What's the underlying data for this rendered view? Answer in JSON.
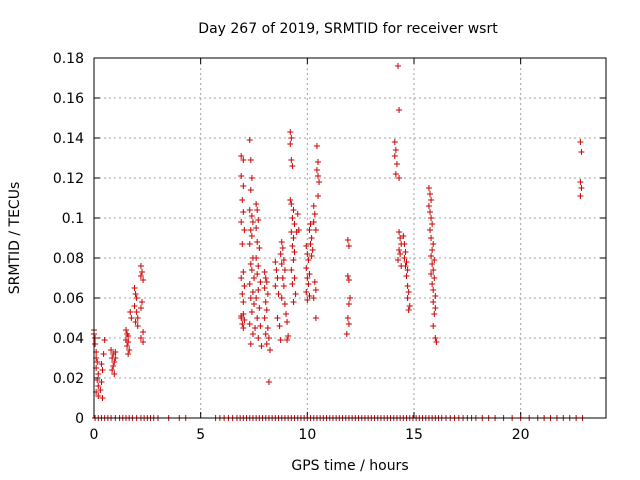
{
  "chart_data": {
    "type": "scatter",
    "title": "Day 267 of 2019, SRMTID for receiver wsrt",
    "xlabel": "GPS time / hours",
    "ylabel": "SRMTID / TECUs",
    "xlim": [
      0,
      24
    ],
    "ylim": [
      0,
      0.18
    ],
    "xticks": [
      "0",
      "5",
      "10",
      "15",
      "20"
    ],
    "yticks": [
      "0",
      "0.02",
      "0.04",
      "0.06",
      "0.08",
      "0.1",
      "0.12",
      "0.14",
      "0.16",
      "0.18"
    ],
    "grid": true,
    "marker": "+",
    "color": "#cc0000",
    "zero_x": [
      0.05,
      0.2,
      0.35,
      0.5,
      0.65,
      0.8,
      1.0,
      1.2,
      1.35,
      1.5,
      1.65,
      1.8,
      2.0,
      2.2,
      2.35,
      2.5,
      2.65,
      2.8,
      3.0,
      3.5,
      4.0,
      4.3,
      5.7,
      5.9,
      6.1,
      6.3,
      6.5,
      6.7,
      6.85,
      7.0,
      7.15,
      7.3,
      7.45,
      7.6,
      7.75,
      7.9,
      8.05,
      8.2,
      8.35,
      8.5,
      8.65,
      8.8,
      8.95,
      9.1,
      9.25,
      9.4,
      9.55,
      9.7,
      9.85,
      10.0,
      10.15,
      10.3,
      10.45,
      10.6,
      10.75,
      10.9,
      11.05,
      11.2,
      11.35,
      11.5,
      11.65,
      11.8,
      11.95,
      12.1,
      12.25,
      12.4,
      12.55,
      12.7,
      12.85,
      13.0,
      13.15,
      13.3,
      13.45,
      13.6,
      13.75,
      13.9,
      14.05,
      14.2,
      14.35,
      14.5,
      14.65,
      14.8,
      14.95,
      15.1,
      15.25,
      15.4,
      15.55,
      15.7,
      15.85,
      16.0,
      16.15,
      16.3,
      16.5,
      16.7,
      16.9,
      17.1,
      17.3,
      17.5,
      17.7,
      17.9,
      18.2,
      18.5,
      18.8,
      19.2,
      19.6,
      20.0,
      20.4,
      20.8,
      21.1,
      21.4,
      21.7,
      22.0,
      22.3,
      22.6,
      22.9
    ],
    "points": [
      [
        0.0,
        0.044
      ],
      [
        0.0,
        0.042
      ],
      [
        0.05,
        0.04
      ],
      [
        0.05,
        0.037
      ],
      [
        0.1,
        0.033
      ],
      [
        0.1,
        0.03
      ],
      [
        0.15,
        0.028
      ],
      [
        0.1,
        0.025
      ],
      [
        0.2,
        0.022
      ],
      [
        0.15,
        0.019
      ],
      [
        0.2,
        0.016
      ],
      [
        0.1,
        0.013
      ],
      [
        0.2,
        0.011
      ],
      [
        0.3,
        0.014
      ],
      [
        0.35,
        0.018
      ],
      [
        0.4,
        0.024
      ],
      [
        0.35,
        0.027
      ],
      [
        0.45,
        0.032
      ],
      [
        0.5,
        0.039
      ],
      [
        0.4,
        0.01
      ],
      [
        0.8,
        0.034
      ],
      [
        0.9,
        0.032
      ],
      [
        0.85,
        0.03
      ],
      [
        0.95,
        0.028
      ],
      [
        0.9,
        0.026
      ],
      [
        1.0,
        0.033
      ],
      [
        1.0,
        0.03
      ],
      [
        0.85,
        0.024
      ],
      [
        0.95,
        0.022
      ],
      [
        1.5,
        0.044
      ],
      [
        1.55,
        0.042
      ],
      [
        1.6,
        0.041
      ],
      [
        1.5,
        0.039
      ],
      [
        1.6,
        0.038
      ],
      [
        1.55,
        0.036
      ],
      [
        1.65,
        0.034
      ],
      [
        1.6,
        0.032
      ],
      [
        1.7,
        0.053
      ],
      [
        1.75,
        0.05
      ],
      [
        1.9,
        0.065
      ],
      [
        1.95,
        0.062
      ],
      [
        2.0,
        0.06
      ],
      [
        1.9,
        0.056
      ],
      [
        2.0,
        0.053
      ],
      [
        2.05,
        0.05
      ],
      [
        1.95,
        0.048
      ],
      [
        2.05,
        0.046
      ],
      [
        2.2,
        0.076
      ],
      [
        2.25,
        0.073
      ],
      [
        2.2,
        0.071
      ],
      [
        2.3,
        0.069
      ],
      [
        2.25,
        0.058
      ],
      [
        2.2,
        0.055
      ],
      [
        2.3,
        0.043
      ],
      [
        2.2,
        0.04
      ],
      [
        2.3,
        0.038
      ],
      [
        6.9,
        0.131
      ],
      [
        7.0,
        0.129
      ],
      [
        6.9,
        0.121
      ],
      [
        7.0,
        0.116
      ],
      [
        6.95,
        0.109
      ],
      [
        7.0,
        0.103
      ],
      [
        6.9,
        0.098
      ],
      [
        7.05,
        0.094
      ],
      [
        6.95,
        0.087
      ],
      [
        7.0,
        0.073
      ],
      [
        6.9,
        0.07
      ],
      [
        7.05,
        0.066
      ],
      [
        6.95,
        0.062
      ],
      [
        7.0,
        0.058
      ],
      [
        6.9,
        0.051
      ],
      [
        7.05,
        0.049
      ],
      [
        6.95,
        0.047
      ],
      [
        7.0,
        0.045
      ],
      [
        6.9,
        0.05
      ],
      [
        7.0,
        0.052
      ],
      [
        7.3,
        0.139
      ],
      [
        7.35,
        0.129
      ],
      [
        7.4,
        0.12
      ],
      [
        7.35,
        0.114
      ],
      [
        7.3,
        0.104
      ],
      [
        7.4,
        0.101
      ],
      [
        7.45,
        0.098
      ],
      [
        7.35,
        0.094
      ],
      [
        7.4,
        0.091
      ],
      [
        7.3,
        0.087
      ],
      [
        7.45,
        0.08
      ],
      [
        7.35,
        0.077
      ],
      [
        7.4,
        0.074
      ],
      [
        7.5,
        0.07
      ],
      [
        7.3,
        0.067
      ],
      [
        7.45,
        0.063
      ],
      [
        7.35,
        0.06
      ],
      [
        7.5,
        0.057
      ],
      [
        7.4,
        0.053
      ],
      [
        7.3,
        0.047
      ],
      [
        7.45,
        0.042
      ],
      [
        7.35,
        0.037
      ],
      [
        7.55,
        0.045
      ],
      [
        7.6,
        0.107
      ],
      [
        7.65,
        0.104
      ],
      [
        7.7,
        0.099
      ],
      [
        7.6,
        0.095
      ],
      [
        7.65,
        0.088
      ],
      [
        7.75,
        0.085
      ],
      [
        7.6,
        0.08
      ],
      [
        7.7,
        0.076
      ],
      [
        7.65,
        0.072
      ],
      [
        7.8,
        0.068
      ],
      [
        7.7,
        0.064
      ],
      [
        7.6,
        0.06
      ],
      [
        7.75,
        0.055
      ],
      [
        7.65,
        0.05
      ],
      [
        7.8,
        0.046
      ],
      [
        7.7,
        0.04
      ],
      [
        7.85,
        0.036
      ],
      [
        8.0,
        0.073
      ],
      [
        8.05,
        0.07
      ],
      [
        8.1,
        0.068
      ],
      [
        8.0,
        0.065
      ],
      [
        8.15,
        0.062
      ],
      [
        8.05,
        0.058
      ],
      [
        8.1,
        0.054
      ],
      [
        8.0,
        0.05
      ],
      [
        8.15,
        0.045
      ],
      [
        8.05,
        0.042
      ],
      [
        8.2,
        0.04
      ],
      [
        8.1,
        0.037
      ],
      [
        8.25,
        0.034
      ],
      [
        8.2,
        0.018
      ],
      [
        8.5,
        0.078
      ],
      [
        8.55,
        0.074
      ],
      [
        8.6,
        0.07
      ],
      [
        8.5,
        0.066
      ],
      [
        8.65,
        0.062
      ],
      [
        8.6,
        0.05
      ],
      [
        8.7,
        0.046
      ],
      [
        8.75,
        0.039
      ],
      [
        8.8,
        0.088
      ],
      [
        8.85,
        0.085
      ],
      [
        8.75,
        0.082
      ],
      [
        8.9,
        0.079
      ],
      [
        8.8,
        0.077
      ],
      [
        8.95,
        0.074
      ],
      [
        8.85,
        0.07
      ],
      [
        8.9,
        0.066
      ],
      [
        8.8,
        0.06
      ],
      [
        8.95,
        0.057
      ],
      [
        9.0,
        0.052
      ],
      [
        9.05,
        0.048
      ],
      [
        9.1,
        0.041
      ],
      [
        9.05,
        0.039
      ],
      [
        9.2,
        0.143
      ],
      [
        9.25,
        0.14
      ],
      [
        9.2,
        0.137
      ],
      [
        9.25,
        0.129
      ],
      [
        9.3,
        0.126
      ],
      [
        9.2,
        0.109
      ],
      [
        9.25,
        0.107
      ],
      [
        9.35,
        0.104
      ],
      [
        9.3,
        0.1
      ],
      [
        9.4,
        0.097
      ],
      [
        9.25,
        0.093
      ],
      [
        9.35,
        0.09
      ],
      [
        9.3,
        0.086
      ],
      [
        9.4,
        0.083
      ],
      [
        9.35,
        0.079
      ],
      [
        9.25,
        0.074
      ],
      [
        9.4,
        0.07
      ],
      [
        9.3,
        0.067
      ],
      [
        9.45,
        0.062
      ],
      [
        9.35,
        0.058
      ],
      [
        9.5,
        0.093
      ],
      [
        9.55,
        0.102
      ],
      [
        9.6,
        0.094
      ],
      [
        9.95,
        0.086
      ],
      [
        10.0,
        0.082
      ],
      [
        10.05,
        0.079
      ],
      [
        9.95,
        0.075
      ],
      [
        10.1,
        0.072
      ],
      [
        10.0,
        0.07
      ],
      [
        10.05,
        0.067
      ],
      [
        9.95,
        0.063
      ],
      [
        10.1,
        0.061
      ],
      [
        10.0,
        0.059
      ],
      [
        10.15,
        0.097
      ],
      [
        10.1,
        0.094
      ],
      [
        10.2,
        0.09
      ],
      [
        10.15,
        0.087
      ],
      [
        10.25,
        0.084
      ],
      [
        10.2,
        0.081
      ],
      [
        10.3,
        0.106
      ],
      [
        10.35,
        0.102
      ],
      [
        10.3,
        0.098
      ],
      [
        10.4,
        0.094
      ],
      [
        10.45,
        0.136
      ],
      [
        10.5,
        0.128
      ],
      [
        10.45,
        0.124
      ],
      [
        10.5,
        0.121
      ],
      [
        10.55,
        0.118
      ],
      [
        10.5,
        0.111
      ],
      [
        10.35,
        0.068
      ],
      [
        10.4,
        0.064
      ],
      [
        10.3,
        0.06
      ],
      [
        10.4,
        0.05
      ],
      [
        11.9,
        0.089
      ],
      [
        11.95,
        0.086
      ],
      [
        11.9,
        0.071
      ],
      [
        11.95,
        0.069
      ],
      [
        12.0,
        0.06
      ],
      [
        11.95,
        0.057
      ],
      [
        11.9,
        0.05
      ],
      [
        11.95,
        0.047
      ],
      [
        11.85,
        0.042
      ],
      [
        14.1,
        0.138
      ],
      [
        14.15,
        0.134
      ],
      [
        14.1,
        0.131
      ],
      [
        14.2,
        0.127
      ],
      [
        14.15,
        0.122
      ],
      [
        14.3,
        0.12
      ],
      [
        14.25,
        0.176
      ],
      [
        14.3,
        0.154
      ],
      [
        14.3,
        0.093
      ],
      [
        14.35,
        0.09
      ],
      [
        14.4,
        0.087
      ],
      [
        14.3,
        0.084
      ],
      [
        14.35,
        0.082
      ],
      [
        14.25,
        0.079
      ],
      [
        14.4,
        0.076
      ],
      [
        14.5,
        0.091
      ],
      [
        14.55,
        0.087
      ],
      [
        14.6,
        0.083
      ],
      [
        14.55,
        0.08
      ],
      [
        14.65,
        0.078
      ],
      [
        14.6,
        0.076
      ],
      [
        14.7,
        0.074
      ],
      [
        14.65,
        0.071
      ],
      [
        14.7,
        0.066
      ],
      [
        14.75,
        0.063
      ],
      [
        14.7,
        0.06
      ],
      [
        14.8,
        0.056
      ],
      [
        14.75,
        0.054
      ],
      [
        15.7,
        0.115
      ],
      [
        15.75,
        0.112
      ],
      [
        15.8,
        0.109
      ],
      [
        15.7,
        0.106
      ],
      [
        15.75,
        0.103
      ],
      [
        15.8,
        0.1
      ],
      [
        15.85,
        0.097
      ],
      [
        15.75,
        0.094
      ],
      [
        15.8,
        0.09
      ],
      [
        15.9,
        0.087
      ],
      [
        15.85,
        0.084
      ],
      [
        15.8,
        0.081
      ],
      [
        15.95,
        0.079
      ],
      [
        15.85,
        0.077
      ],
      [
        15.9,
        0.074
      ],
      [
        15.8,
        0.072
      ],
      [
        15.95,
        0.07
      ],
      [
        15.85,
        0.067
      ],
      [
        15.9,
        0.064
      ],
      [
        16.0,
        0.061
      ],
      [
        15.9,
        0.058
      ],
      [
        16.0,
        0.055
      ],
      [
        15.95,
        0.052
      ],
      [
        15.9,
        0.046
      ],
      [
        16.0,
        0.04
      ],
      [
        16.05,
        0.038
      ],
      [
        22.8,
        0.138
      ],
      [
        22.85,
        0.133
      ],
      [
        22.8,
        0.118
      ],
      [
        22.85,
        0.115
      ],
      [
        22.8,
        0.111
      ]
    ]
  }
}
